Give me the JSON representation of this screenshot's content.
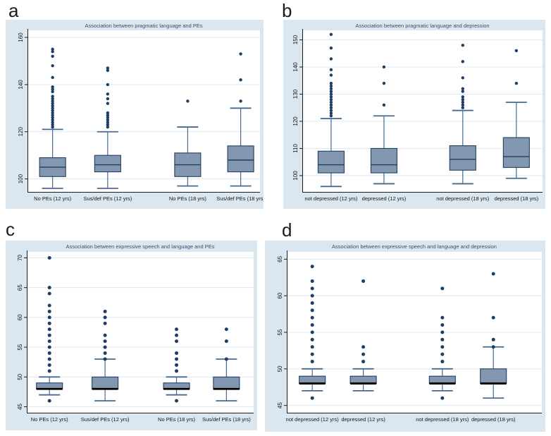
{
  "colors": {
    "page_bg": "#ffffff",
    "panel_bg": "#dbe7f0",
    "plot_bg": "#ffffff",
    "grid": "#dcе9f3",
    "grid_fix": "#dce9f3",
    "axis": "#1c1c1c",
    "box_fill": "#8398b0",
    "box_border": "#1f3e63",
    "whisker": "#466b92",
    "outlier": "#1c3f66",
    "title": "#3d4e68",
    "text": "#141414"
  },
  "chart_data": [
    {
      "id": "a",
      "panel_label": "a",
      "type": "box",
      "title": "Association between pragmatic language and PEs",
      "ylabel": "",
      "xlabel": "",
      "ylim": [
        94.5,
        163
      ],
      "yticks": [
        100,
        120,
        140,
        160
      ],
      "grid": true,
      "median_thick": false,
      "categories": [
        "No PEs (12 yrs)",
        "Sus/def PEs (12 yrs)",
        "No PEs (18 yrs)",
        "Sus/def PEs (18 yrs)"
      ],
      "boxes": [
        {
          "label": "No PEs (12 yrs)",
          "q1": 101,
          "median": 105,
          "q3": 109,
          "whisker_low": 96,
          "whisker_high": 121,
          "outliers": [
            122,
            123,
            124,
            125,
            126,
            127,
            128,
            129,
            130,
            131,
            132,
            133,
            134,
            135,
            137,
            138,
            139,
            143,
            148,
            152,
            154,
            155
          ]
        },
        {
          "label": "Sus/def PEs (12 yrs)",
          "q1": 103,
          "median": 106,
          "q3": 110,
          "whisker_low": 96,
          "whisker_high": 120,
          "outliers": [
            122,
            123,
            124,
            125,
            126,
            127,
            128,
            132,
            134,
            136,
            140,
            146,
            147
          ]
        },
        {
          "label": "No PEs (18 yrs)",
          "q1": 101,
          "median": 106,
          "q3": 111,
          "whisker_low": 97,
          "whisker_high": 122,
          "outliers": [
            133
          ]
        },
        {
          "label": "Sus/def PEs (18 yrs)",
          "q1": 103,
          "median": 108,
          "q3": 114,
          "whisker_low": 97,
          "whisker_high": 130,
          "outliers": [
            133,
            142,
            153
          ]
        }
      ]
    },
    {
      "id": "b",
      "panel_label": "b",
      "type": "box",
      "title": "Association between pragmatic language and depression",
      "ylabel": "",
      "xlabel": "",
      "ylim": [
        94,
        153.5
      ],
      "yticks": [
        100,
        110,
        120,
        130,
        140,
        150
      ],
      "grid": true,
      "median_thick": false,
      "categories": [
        "not depressed (12 yrs)",
        "depressed (12 yrs)",
        "not depressed (18 yrs)",
        "depressed (18 yrs)"
      ],
      "boxes": [
        {
          "label": "not depressed (12 yrs)",
          "q1": 101,
          "median": 104,
          "q3": 109,
          "whisker_low": 96,
          "whisker_high": 121,
          "outliers": [
            122,
            123,
            124,
            125,
            126,
            127,
            128,
            129,
            130,
            131,
            132,
            133,
            134,
            137,
            139,
            143,
            147,
            152
          ]
        },
        {
          "label": "depressed (12 yrs)",
          "q1": 101,
          "median": 104,
          "q3": 110,
          "whisker_low": 97,
          "whisker_high": 122,
          "outliers": [
            126,
            134,
            140
          ]
        },
        {
          "label": "not depressed (18 yrs)",
          "q1": 102,
          "median": 106,
          "q3": 111,
          "whisker_low": 97,
          "whisker_high": 124,
          "outliers": [
            125,
            126,
            127,
            128,
            129,
            131,
            132,
            136,
            142,
            148
          ]
        },
        {
          "label": "depressed (18 yrs)",
          "q1": 103,
          "median": 107,
          "q3": 114,
          "whisker_low": 99,
          "whisker_high": 127,
          "outliers": [
            134,
            146
          ]
        }
      ]
    },
    {
      "id": "c",
      "panel_label": "c",
      "type": "box",
      "title": "Association between expressive speech and language and PEs",
      "ylabel": "",
      "xlabel": "",
      "ylim": [
        44,
        71
      ],
      "yticks": [
        45,
        50,
        55,
        60,
        65,
        70
      ],
      "grid": true,
      "median_thick": true,
      "categories": [
        "No PEs (12 yrs)",
        "Sus/def PEs (12 yrs)",
        "No PEs (18 yrs)",
        "Sus/def PEs (18 yrs)"
      ],
      "boxes": [
        {
          "label": "No PEs (12 yrs)",
          "q1": 48,
          "median": 48,
          "q3": 49,
          "whisker_low": 47,
          "whisker_high": 50,
          "outliers": [
            46,
            51,
            52,
            53,
            54,
            55,
            56,
            57,
            58,
            59,
            60,
            61,
            62,
            64,
            65,
            70
          ]
        },
        {
          "label": "Sus/def PEs (12 yrs)",
          "q1": 48,
          "median": 48,
          "q3": 50,
          "whisker_low": 46,
          "whisker_high": 53,
          "outliers": [
            53,
            54,
            55,
            56,
            57,
            59,
            60,
            61
          ]
        },
        {
          "label": "No PEs (18 yrs)",
          "q1": 48,
          "median": 48,
          "q3": 49,
          "whisker_low": 47,
          "whisker_high": 50,
          "outliers": [
            46,
            51,
            52,
            53,
            54,
            56,
            57,
            58
          ]
        },
        {
          "label": "Sus/def PEs (18 yrs)",
          "q1": 48,
          "median": 48,
          "q3": 50,
          "whisker_low": 46,
          "whisker_high": 53,
          "outliers": [
            53,
            56,
            58
          ]
        }
      ]
    },
    {
      "id": "d",
      "panel_label": "d",
      "type": "box",
      "title": "Association between expressive speech and language and depression",
      "ylabel": "",
      "xlabel": "",
      "ylim": [
        44,
        66
      ],
      "yticks": [
        45,
        50,
        55,
        60,
        65
      ],
      "grid": true,
      "median_thick": true,
      "categories": [
        "not depressed (12 yrs)",
        "depressed (12 yrs)",
        "not depressed (18 yrs)",
        "depressed (18 yrs)"
      ],
      "boxes": [
        {
          "label": "not depressed (12 yrs)",
          "q1": 48,
          "median": 48,
          "q3": 49,
          "whisker_low": 47,
          "whisker_high": 50,
          "outliers": [
            46,
            51,
            52,
            53,
            54,
            55,
            56,
            57,
            58,
            59,
            60,
            61,
            62,
            64
          ]
        },
        {
          "label": "depressed (12 yrs)",
          "q1": 48,
          "median": 48,
          "q3": 49,
          "whisker_low": 47,
          "whisker_high": 50,
          "outliers": [
            51,
            52,
            53,
            62
          ]
        },
        {
          "label": "not depressed (18 yrs)",
          "q1": 48,
          "median": 48,
          "q3": 49,
          "whisker_low": 47,
          "whisker_high": 50,
          "outliers": [
            46,
            51,
            52,
            53,
            54,
            55,
            56,
            57,
            61
          ]
        },
        {
          "label": "depressed (18 yrs)",
          "q1": 48,
          "median": 48,
          "q3": 50,
          "whisker_low": 46,
          "whisker_high": 53,
          "outliers": [
            53,
            54,
            57,
            63
          ]
        }
      ]
    }
  ]
}
